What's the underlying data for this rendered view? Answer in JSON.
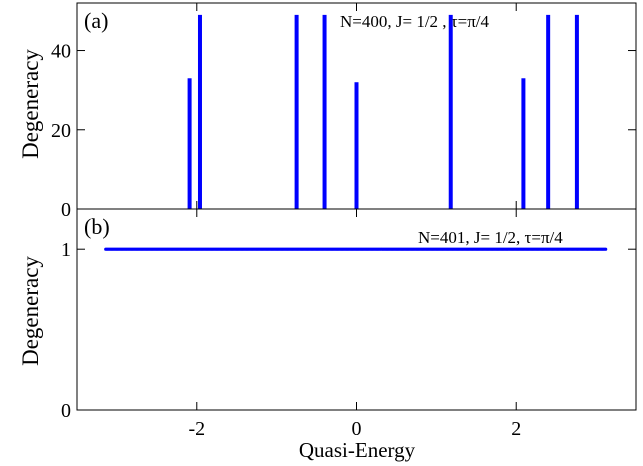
{
  "chart_data": [
    {
      "type": "bar",
      "panel_label": "(a)",
      "annotation": "N=400, J= 1/2 , τ=π/4",
      "ylabel": "Degeneracy",
      "xlabel": "",
      "xlim": [
        -3.5,
        3.5
      ],
      "ylim": [
        0,
        52
      ],
      "yticks": [
        0,
        20,
        40
      ],
      "xticks": [
        -2,
        0,
        2
      ],
      "grid": false,
      "color": "#0000ff",
      "x": [
        -2.09,
        -1.96,
        -0.75,
        -0.4,
        0.0,
        1.18,
        2.09,
        2.4,
        2.76
      ],
      "values": [
        33,
        49,
        49,
        49,
        32,
        49,
        33,
        49,
        49
      ]
    },
    {
      "type": "scatter",
      "panel_label": "(b)",
      "annotation": "N=401, J= 1/2, τ=π/4",
      "ylabel": "Degeneracy",
      "xlabel": "Quasi-Energy",
      "xlim": [
        -3.5,
        3.5
      ],
      "ylim": [
        0,
        1.25
      ],
      "yticks": [
        0,
        1
      ],
      "xticks": [
        -2,
        0,
        2
      ],
      "tick_labels": [
        "-2",
        "0",
        "2"
      ],
      "grid": false,
      "color": "#0000ff",
      "series": [
        {
          "x_range": [
            -3.14,
            3.12
          ],
          "y": 1,
          "num_points": 401
        }
      ]
    }
  ]
}
